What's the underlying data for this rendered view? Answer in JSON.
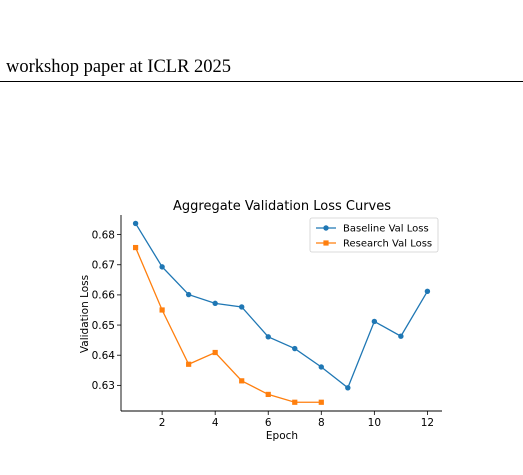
{
  "header": {
    "text": "workshop paper at ICLR 2025"
  },
  "chart_data": {
    "type": "line",
    "title": "Aggregate Validation Loss Curves",
    "xlabel": "Epoch",
    "ylabel": "Validation Loss",
    "xlim": [
      0.45,
      12.55
    ],
    "ylim": [
      0.6215,
      0.6865
    ],
    "xticks": [
      2,
      4,
      6,
      8,
      10,
      12
    ],
    "yticks": [
      0.63,
      0.64,
      0.65,
      0.66,
      0.67,
      0.68
    ],
    "ytick_labels": [
      "0.63",
      "0.64",
      "0.65",
      "0.66",
      "0.67",
      "0.68"
    ],
    "legend_position": "top-right",
    "grid": false,
    "series": [
      {
        "name": "Baseline Val Loss",
        "color": "#1f77b4",
        "marker": "circle",
        "x": [
          1,
          2,
          3,
          4,
          5,
          6,
          7,
          8,
          9,
          10,
          11,
          12
        ],
        "y": [
          0.6837,
          0.6693,
          0.6601,
          0.6572,
          0.656,
          0.6461,
          0.6422,
          0.6361,
          0.6292,
          0.6512,
          0.6463,
          0.6612
        ]
      },
      {
        "name": "Research Val Loss",
        "color": "#ff7f0e",
        "marker": "square",
        "x": [
          1,
          2,
          3,
          4,
          5,
          6,
          7,
          8
        ],
        "y": [
          0.6757,
          0.655,
          0.637,
          0.6409,
          0.6315,
          0.627,
          0.6244,
          0.6244
        ]
      }
    ]
  }
}
